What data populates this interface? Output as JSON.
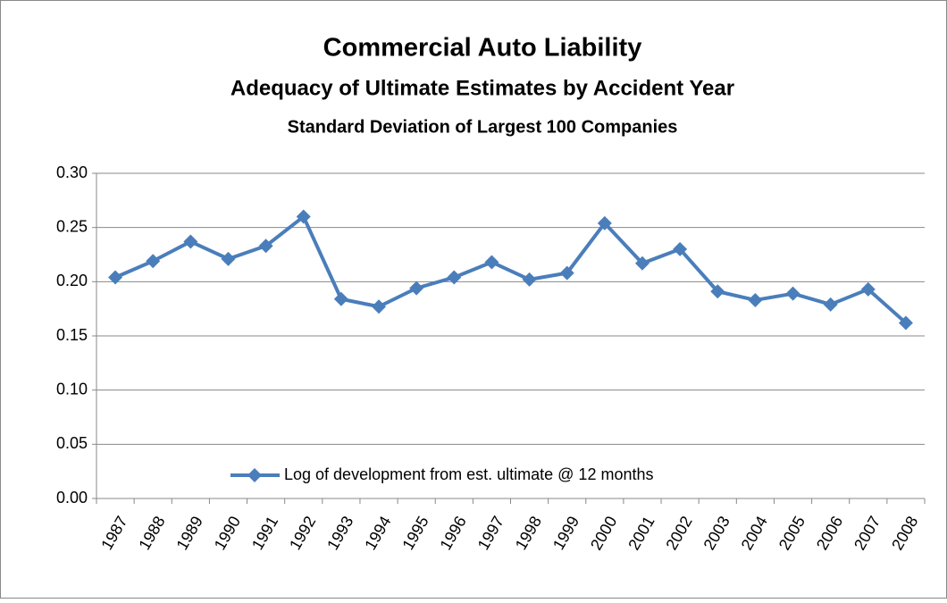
{
  "chart_data": {
    "type": "line",
    "title": "Commercial Auto Liability",
    "subtitle": "Adequacy of Ultimate Estimates by Accident Year",
    "subtitle2": "Standard Deviation of Largest 100 Companies",
    "categories": [
      "1987",
      "1988",
      "1989",
      "1990",
      "1991",
      "1992",
      "1993",
      "1994",
      "1995",
      "1996",
      "1997",
      "1998",
      "1999",
      "2000",
      "2001",
      "2002",
      "2003",
      "2004",
      "2005",
      "2006",
      "2007",
      "2008"
    ],
    "series": [
      {
        "name": "Log of development from est. ultimate @ 12 months",
        "color": "#4a7ebb",
        "values": [
          0.204,
          0.219,
          0.237,
          0.221,
          0.233,
          0.26,
          0.184,
          0.177,
          0.194,
          0.204,
          0.218,
          0.202,
          0.208,
          0.254,
          0.217,
          0.23,
          0.191,
          0.183,
          0.189,
          0.179,
          0.193,
          0.162
        ]
      }
    ],
    "ylim": [
      0,
      0.3
    ],
    "yticks": [
      {
        "value": 0,
        "label": "0.00"
      },
      0.05,
      {
        "value": 0.1,
        "label": "0.10"
      },
      0.15,
      {
        "value": 0.2,
        "label": "0.20"
      },
      0.25,
      {
        "value": 0.3,
        "label": "0.30"
      }
    ],
    "grid": true,
    "legend": "lower center"
  }
}
